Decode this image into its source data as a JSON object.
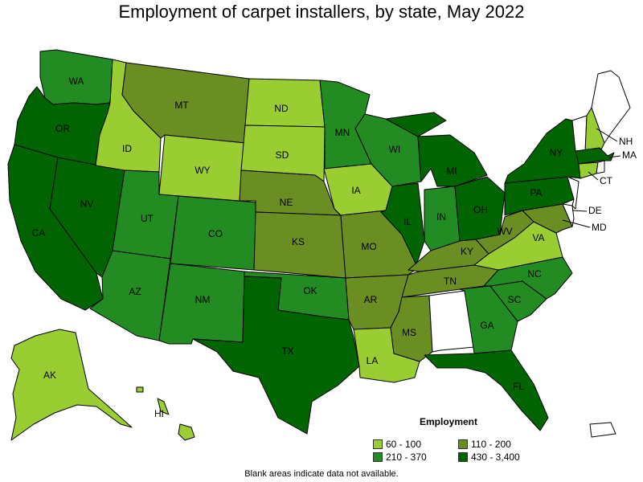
{
  "title": "Employment of carpet installers, by state, May 2022",
  "footnote": "Blank areas indicate data not available.",
  "legend": {
    "title": "Employment",
    "items": [
      {
        "label": "60 - 100",
        "color": "#9acd32"
      },
      {
        "label": "110 - 200",
        "color": "#6b8e23"
      },
      {
        "label": "210 - 370",
        "color": "#228b22"
      },
      {
        "label": "430 - 3,400",
        "color": "#006400"
      }
    ]
  },
  "colors": {
    "very_low": "#9acd32",
    "low": "#6b8e23",
    "mid": "#228b22",
    "high": "#006400",
    "none": "#ffffff"
  },
  "states": [
    {
      "abbr": "WA",
      "bin": "mid"
    },
    {
      "abbr": "OR",
      "bin": "high"
    },
    {
      "abbr": "CA",
      "bin": "high"
    },
    {
      "abbr": "NV",
      "bin": "high"
    },
    {
      "abbr": "ID",
      "bin": "very_low"
    },
    {
      "abbr": "MT",
      "bin": "low"
    },
    {
      "abbr": "WY",
      "bin": "very_low"
    },
    {
      "abbr": "UT",
      "bin": "mid"
    },
    {
      "abbr": "AZ",
      "bin": "mid"
    },
    {
      "abbr": "CO",
      "bin": "mid"
    },
    {
      "abbr": "NM",
      "bin": "mid"
    },
    {
      "abbr": "ND",
      "bin": "very_low"
    },
    {
      "abbr": "SD",
      "bin": "very_low"
    },
    {
      "abbr": "NE",
      "bin": "low"
    },
    {
      "abbr": "KS",
      "bin": "low"
    },
    {
      "abbr": "OK",
      "bin": "mid"
    },
    {
      "abbr": "TX",
      "bin": "high"
    },
    {
      "abbr": "MN",
      "bin": "mid"
    },
    {
      "abbr": "IA",
      "bin": "very_low"
    },
    {
      "abbr": "MO",
      "bin": "low"
    },
    {
      "abbr": "AR",
      "bin": "low"
    },
    {
      "abbr": "LA",
      "bin": "very_low"
    },
    {
      "abbr": "WI",
      "bin": "mid"
    },
    {
      "abbr": "IL",
      "bin": "high"
    },
    {
      "abbr": "MI",
      "bin": "high"
    },
    {
      "abbr": "IN",
      "bin": "mid"
    },
    {
      "abbr": "OH",
      "bin": "high"
    },
    {
      "abbr": "KY",
      "bin": "low"
    },
    {
      "abbr": "TN",
      "bin": "low"
    },
    {
      "abbr": "MS",
      "bin": "low"
    },
    {
      "abbr": "AL",
      "bin": "none"
    },
    {
      "abbr": "GA",
      "bin": "mid"
    },
    {
      "abbr": "FL",
      "bin": "high"
    },
    {
      "abbr": "SC",
      "bin": "mid"
    },
    {
      "abbr": "NC",
      "bin": "mid"
    },
    {
      "abbr": "VA",
      "bin": "very_low"
    },
    {
      "abbr": "WV",
      "bin": "low"
    },
    {
      "abbr": "PA",
      "bin": "high"
    },
    {
      "abbr": "NY",
      "bin": "high"
    },
    {
      "abbr": "MD",
      "bin": "low"
    },
    {
      "abbr": "DE",
      "bin": "none"
    },
    {
      "abbr": "NJ",
      "bin": "none"
    },
    {
      "abbr": "CT",
      "bin": "very_low"
    },
    {
      "abbr": "RI",
      "bin": "none"
    },
    {
      "abbr": "MA",
      "bin": "high"
    },
    {
      "abbr": "VT",
      "bin": "none"
    },
    {
      "abbr": "NH",
      "bin": "very_low"
    },
    {
      "abbr": "ME",
      "bin": "none"
    },
    {
      "abbr": "AK",
      "bin": "very_low"
    },
    {
      "abbr": "HI",
      "bin": "very_low"
    },
    {
      "abbr": "PR",
      "bin": "none"
    }
  ]
}
